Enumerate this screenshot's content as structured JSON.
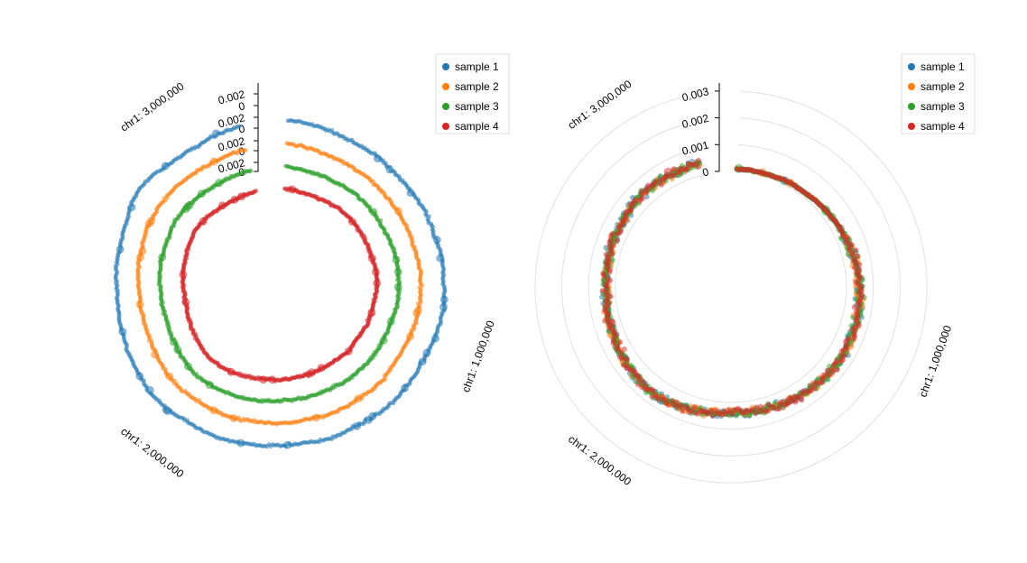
{
  "chart_data": [
    {
      "type": "scatter",
      "layout": "circular-stacked",
      "chromosome_labels": [
        "chr1: 1,000,000",
        "chr1: 2,000,000",
        "chr1: 3,000,000"
      ],
      "chromosome_positions": [
        1000000,
        2000000,
        3000000
      ],
      "x_range": [
        0,
        3200000
      ],
      "tick_labels": [
        "0.002",
        "0",
        "0.002",
        "0",
        "0.002",
        "0",
        "0.002",
        "0"
      ],
      "track_ylim": [
        0,
        0.0025
      ],
      "legend": {
        "placement": "top-right",
        "items": [
          "sample 1",
          "sample 2",
          "sample 3",
          "sample 4"
        ]
      },
      "series": [
        {
          "name": "sample 1",
          "color": "#1f77b4",
          "y": [
            0.0013,
            0.0012,
            0.0011,
            0.001,
            0.0011,
            0.001,
            0.0011,
            0.0012,
            0.0012,
            0.0013,
            0.0013,
            0.0014,
            0.0013,
            0.0012,
            0.0012,
            0.0013,
            0.0012,
            0.0011,
            0.0012,
            0.0011,
            0.0011,
            0.0012,
            0.0013,
            0.0014,
            0.0014,
            0.0016,
            0.0016,
            0.0015,
            0.0014,
            0.0013,
            0.0012,
            0.0013,
            0.0013,
            0.0014,
            0.0017,
            0.0015,
            0.0012,
            0.0011,
            0.0012,
            0.0012
          ]
        },
        {
          "name": "sample 2",
          "color": "#ff7f0e",
          "y": [
            0.0012,
            0.0011,
            0.001,
            0.001,
            0.001,
            0.001,
            0.001,
            0.0011,
            0.0011,
            0.0012,
            0.0012,
            0.0012,
            0.0012,
            0.0011,
            0.0011,
            0.0012,
            0.0011,
            0.0011,
            0.0011,
            0.001,
            0.0011,
            0.0011,
            0.0012,
            0.0013,
            0.0013,
            0.0014,
            0.0014,
            0.0013,
            0.0012,
            0.0012,
            0.0012,
            0.0013,
            0.0013,
            0.0014,
            0.0014,
            0.0013,
            0.0012,
            0.0011,
            0.0011,
            0.0011
          ]
        },
        {
          "name": "sample 3",
          "color": "#2ca02c",
          "y": [
            0.0011,
            0.001,
            0.001,
            0.001,
            0.0011,
            0.0011,
            0.0011,
            0.0011,
            0.0012,
            0.0012,
            0.0012,
            0.0012,
            0.0011,
            0.0011,
            0.0011,
            0.0011,
            0.0011,
            0.001,
            0.001,
            0.001,
            0.001,
            0.0011,
            0.0012,
            0.0013,
            0.0014,
            0.0015,
            0.0014,
            0.0013,
            0.0012,
            0.0012,
            0.0012,
            0.0013,
            0.0013,
            0.0013,
            0.0014,
            0.0013,
            0.0012,
            0.0011,
            0.0011,
            0.0011
          ]
        },
        {
          "name": "sample 4",
          "color": "#d62728",
          "y": [
            0.0011,
            0.001,
            0.001,
            0.001,
            0.0011,
            0.0011,
            0.0011,
            0.0011,
            0.0011,
            0.0012,
            0.0012,
            0.0011,
            0.0011,
            0.0011,
            0.001,
            0.0011,
            0.001,
            0.001,
            0.001,
            0.001,
            0.0011,
            0.0011,
            0.0012,
            0.0013,
            0.0014,
            0.0015,
            0.0014,
            0.0013,
            0.0012,
            0.0011,
            0.0011,
            0.0012,
            0.0012,
            0.0013,
            0.0014,
            0.0013,
            0.0012,
            0.0011,
            0.0011,
            0.0011
          ]
        }
      ]
    },
    {
      "type": "scatter",
      "layout": "circular-overlaid",
      "chromosome_labels": [
        "chr1: 1,000,000",
        "chr1: 2,000,000",
        "chr1: 3,000,000"
      ],
      "chromosome_positions": [
        1000000,
        2000000,
        3000000
      ],
      "x_range": [
        0,
        3200000
      ],
      "tick_labels": [
        "0.003",
        "0.002",
        "0.001",
        "0"
      ],
      "ylim": [
        0,
        0.0033
      ],
      "grid": true,
      "legend": {
        "placement": "top-right",
        "items": [
          "sample 1",
          "sample 2",
          "sample 3",
          "sample 4"
        ]
      },
      "series": [
        {
          "name": "sample 1",
          "color": "#1f77b4",
          "y": [
            0.0004,
            0.0004,
            0.0004,
            0.0005,
            0.0005,
            0.0006,
            0.0007,
            0.0008,
            0.0009,
            0.001,
            0.0011,
            0.0012,
            0.0012,
            0.0012,
            0.0013,
            0.0012,
            0.0011,
            0.0011,
            0.001,
            0.001,
            0.0009,
            0.001,
            0.0011,
            0.0012,
            0.0013,
            0.0013,
            0.0012,
            0.0011,
            0.001,
            0.001,
            0.0009,
            0.0009,
            0.0009,
            0.001,
            0.001,
            0.0011,
            0.0011,
            0.001,
            0.001,
            0.001
          ]
        },
        {
          "name": "sample 2",
          "color": "#ff7f0e",
          "y": [
            0.0004,
            0.0004,
            0.0004,
            0.0005,
            0.0005,
            0.0006,
            0.0007,
            0.0008,
            0.0009,
            0.001,
            0.0011,
            0.0012,
            0.0012,
            0.0013,
            0.0013,
            0.0012,
            0.0012,
            0.0011,
            0.001,
            0.001,
            0.0009,
            0.001,
            0.0011,
            0.0012,
            0.0013,
            0.0013,
            0.0012,
            0.0011,
            0.0011,
            0.001,
            0.0009,
            0.0009,
            0.0009,
            0.001,
            0.001,
            0.0011,
            0.0011,
            0.001,
            0.001,
            0.001
          ]
        },
        {
          "name": "sample 3",
          "color": "#2ca02c",
          "y": [
            0.0004,
            0.0004,
            0.0004,
            0.0005,
            0.0005,
            0.0006,
            0.0007,
            0.0008,
            0.0009,
            0.001,
            0.0011,
            0.0012,
            0.0012,
            0.0012,
            0.0013,
            0.0012,
            0.0011,
            0.0011,
            0.001,
            0.001,
            0.0009,
            0.001,
            0.0011,
            0.0012,
            0.0013,
            0.0013,
            0.0012,
            0.0011,
            0.001,
            0.001,
            0.0009,
            0.0009,
            0.0009,
            0.001,
            0.001,
            0.0011,
            0.0011,
            0.001,
            0.001,
            0.001
          ]
        },
        {
          "name": "sample 4",
          "color": "#d62728",
          "y": [
            0.0004,
            0.0004,
            0.0004,
            0.0005,
            0.0005,
            0.0006,
            0.0007,
            0.0008,
            0.0009,
            0.001,
            0.0011,
            0.0012,
            0.0012,
            0.0012,
            0.0013,
            0.0012,
            0.0011,
            0.0011,
            0.001,
            0.001,
            0.0009,
            0.001,
            0.0011,
            0.0012,
            0.0013,
            0.0013,
            0.0012,
            0.0011,
            0.001,
            0.001,
            0.0009,
            0.0009,
            0.0009,
            0.001,
            0.001,
            0.0011,
            0.0011,
            0.001,
            0.001,
            0.001
          ]
        }
      ]
    }
  ]
}
